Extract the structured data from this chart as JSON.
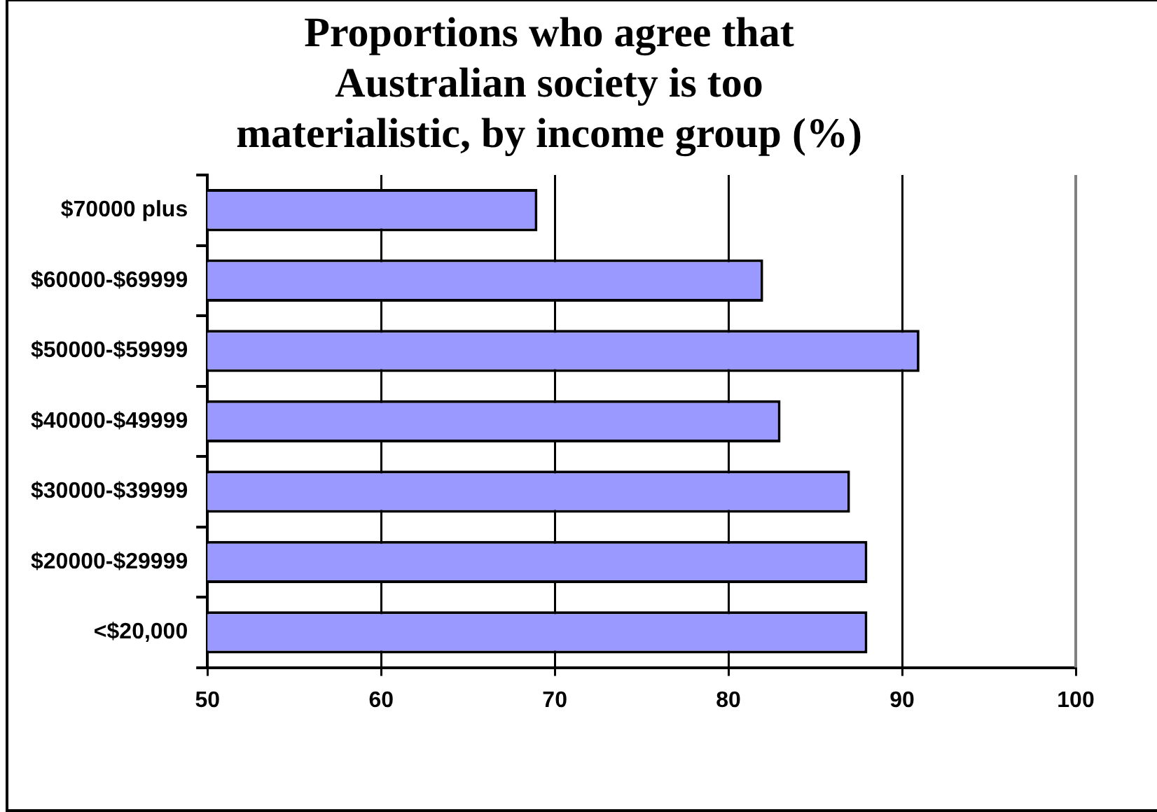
{
  "chart_data": {
    "type": "bar",
    "orientation": "horizontal",
    "title": "Proportions who agree that Australian society is too materialistic, by income group (%)",
    "categories": [
      "$70000 plus",
      "$60000-$69999",
      "$50000-$59999",
      "$40000-$49999",
      "$30000-$39999",
      "$20000-$29999",
      "<$20,000"
    ],
    "values": [
      69,
      82,
      91,
      83,
      87,
      88,
      88
    ],
    "color": "#9999ff",
    "xlim": [
      50,
      100
    ],
    "xticks": [
      50,
      60,
      70,
      80,
      90,
      100
    ],
    "grid": "x",
    "legend": false
  }
}
